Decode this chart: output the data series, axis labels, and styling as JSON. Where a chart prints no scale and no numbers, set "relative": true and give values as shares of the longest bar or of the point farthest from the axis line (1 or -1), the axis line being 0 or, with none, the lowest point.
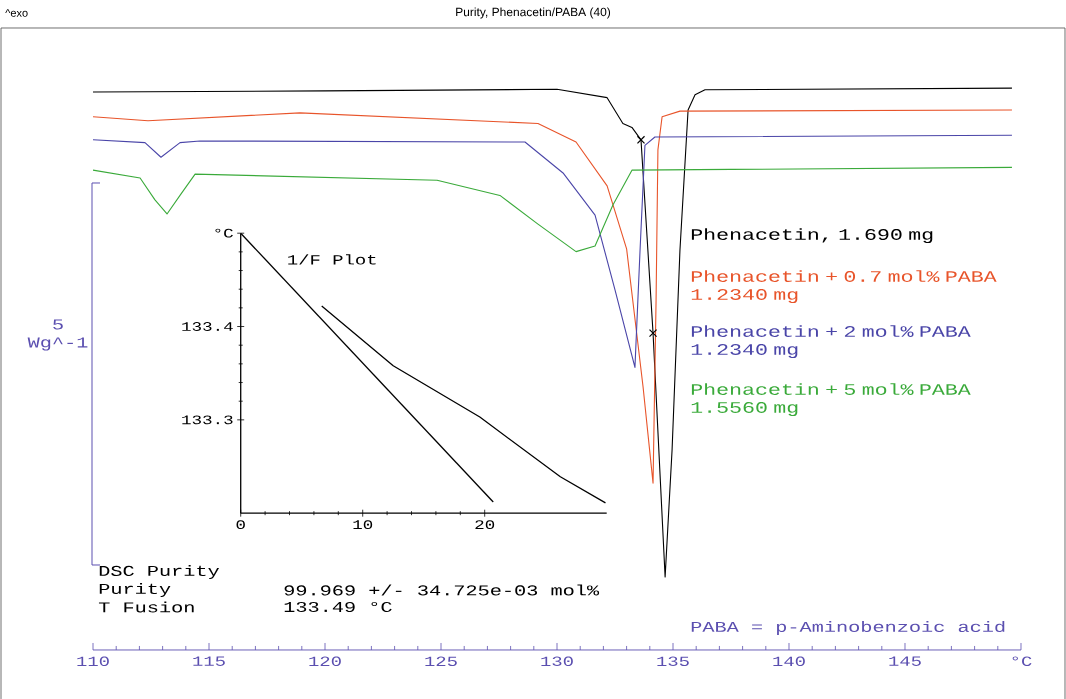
{
  "chart_data": [
    {
      "type": "line",
      "title": "Purity, Phenacetin/PABA (40)",
      "ylabel": "5 Wg^-1",
      "relative": true,
      "annotations": [
        "^exo",
        "DSC Purity",
        "Purity",
        "99.969 +/- 34.725e-03 mol%",
        "T Fusion",
        "133.49 °C",
        "PABA = p-Aminobenzoic acid"
      ],
      "xlim": [
        110,
        150
      ],
      "xticks": [
        110,
        115,
        120,
        125,
        130,
        135,
        140,
        145,
        {
          "value": 150,
          "label": "°C"
        }
      ],
      "series": [
        {
          "name": "Phenacetin, 1.690 mg",
          "color": "#000000",
          "x": [
            110,
            120,
            130,
            132.16,
            132.84,
            133.23,
            133.62,
            134.14,
            134.66,
            134.96,
            135.3,
            135.65,
            135.95,
            136.38,
            149.61
          ],
          "values": [
            0.993,
            0.995,
            0.998,
            0.983,
            0.937,
            0.93,
            0.908,
            0.564,
            0.13,
            0.356,
            0.712,
            0.961,
            0.988,
            0.997,
            1
          ]
        },
        {
          "name": "Phenacetin + 0.7 mol% PABA 1.2340 mg",
          "color": "#e8542a",
          "x": [
            110,
            112.37,
            118.92,
            129.18,
            130.82,
            132.16,
            133.0,
            133.71,
            134.14,
            134.27,
            134.35,
            134.53,
            135.3,
            149.61
          ],
          "values": [
            0.949,
            0.942,
            0.956,
            0.937,
            0.904,
            0.826,
            0.714,
            0.468,
            0.297,
            0.622,
            0.89,
            0.949,
            0.959,
            0.961
          ]
        },
        {
          "name": "Phenacetin + 2 mol% PABA 1.2340 mg",
          "color": "#4a45a8",
          "x": [
            110,
            112.24,
            112.93,
            113.75,
            114.61,
            128.62,
            130.26,
            131.64,
            132.5,
            133.36,
            133.58,
            133.79,
            134.22,
            149.61
          ],
          "values": [
            0.908,
            0.903,
            0.877,
            0.903,
            0.906,
            0.904,
            0.849,
            0.774,
            0.641,
            0.503,
            0.712,
            0.898,
            0.913,
            0.916
          ]
        },
        {
          "name": "Phenacetin + 5 mol% PABA 1.5560 mg",
          "color": "#3aaa3a",
          "x": [
            110,
            112.03,
            112.67,
            113.19,
            113.75,
            114.4,
            124.83,
            127.54,
            129.18,
            130.82,
            131.64,
            132.41,
            133.23,
            149.61
          ],
          "values": [
            0.854,
            0.84,
            0.801,
            0.776,
            0.809,
            0.847,
            0.836,
            0.809,
            0.758,
            0.709,
            0.719,
            0.792,
            0.854,
            0.859
          ]
        },
        {
          "type": "scatter",
          "marker": "cross",
          "color": "#000000",
          "x": [
            133.62,
            134.14
          ],
          "values": [
            0.908,
            0.564
          ]
        }
      ]
    },
    {
      "type": "line",
      "title": "1/F Plot",
      "xlim": [
        0,
        30
      ],
      "ylim": [
        133.2,
        133.5
      ],
      "xticks": [
        0,
        10,
        20
      ],
      "yticks": [
        133.3,
        133.4,
        {
          "value": 133.5,
          "label": "°C"
        }
      ],
      "series": [
        {
          "color": "#000000",
          "x": [
            0,
            20.7
          ],
          "values": [
            133.5,
            133.212
          ]
        },
        {
          "color": "#000000",
          "x": [
            6.64,
            12.5,
            19.6,
            26.2,
            29.9
          ],
          "values": [
            133.422,
            133.358,
            133.303,
            133.239,
            133.211
          ]
        }
      ]
    }
  ]
}
